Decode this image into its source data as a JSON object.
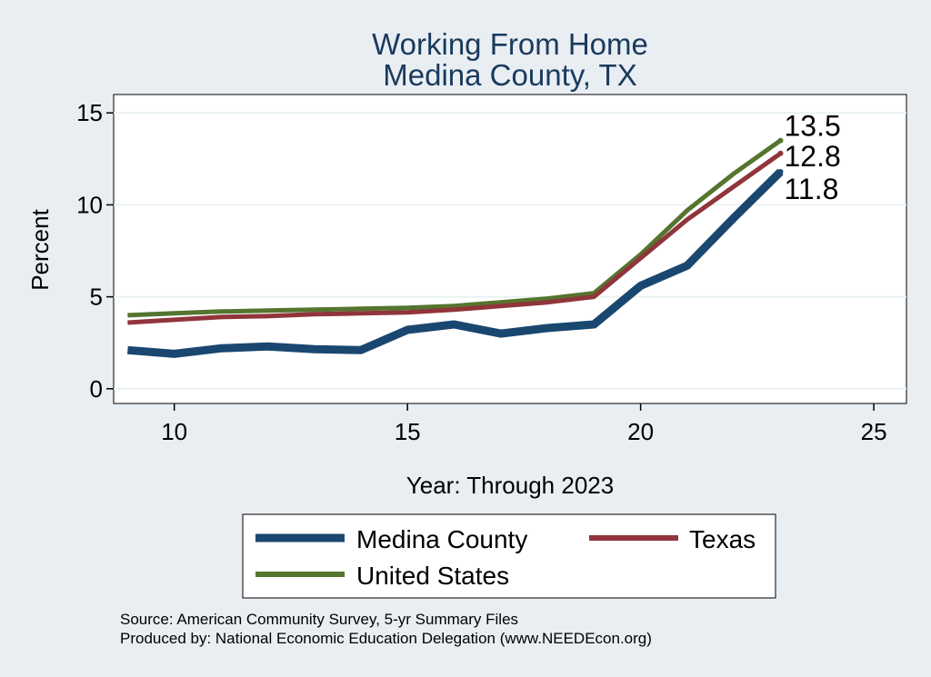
{
  "chart_data": {
    "type": "line",
    "title": "Working From Home",
    "subtitle": "Medina County, TX",
    "xlabel": "Year: Through 2023",
    "ylabel": "Percent",
    "xlim": [
      8.7,
      25.7
    ],
    "ylim": [
      -0.8,
      16
    ],
    "xticks": [
      10,
      15,
      20,
      25
    ],
    "yticks": [
      0,
      5,
      10,
      15
    ],
    "grid": true,
    "legend_position": "bottom",
    "x": [
      9,
      10,
      11,
      12,
      13,
      14,
      15,
      16,
      17,
      18,
      19,
      20,
      21,
      22,
      23
    ],
    "series": [
      {
        "name": "Medina County",
        "color": "#1a476f",
        "values": [
          2.1,
          1.9,
          2.2,
          2.3,
          2.15,
          2.1,
          3.2,
          3.5,
          3.0,
          3.3,
          3.5,
          5.6,
          6.7,
          9.3,
          11.8
        ],
        "end_label": "11.8"
      },
      {
        "name": "Texas",
        "color": "#90353b",
        "values": [
          3.6,
          3.75,
          3.9,
          3.95,
          4.05,
          4.1,
          4.15,
          4.3,
          4.5,
          4.7,
          5.0,
          7.1,
          9.2,
          11.0,
          12.8
        ],
        "end_label": "12.8"
      },
      {
        "name": "United States",
        "color": "#55752f",
        "values": [
          4.0,
          4.1,
          4.2,
          4.25,
          4.3,
          4.35,
          4.4,
          4.5,
          4.7,
          4.9,
          5.2,
          7.3,
          9.7,
          11.7,
          13.5
        ],
        "end_label": "13.5"
      }
    ],
    "notes": [
      "Source: American Community Survey, 5-yr Summary Files",
      "Produced by: National Economic Education Delegation (www.NEEDEcon.org)"
    ]
  }
}
